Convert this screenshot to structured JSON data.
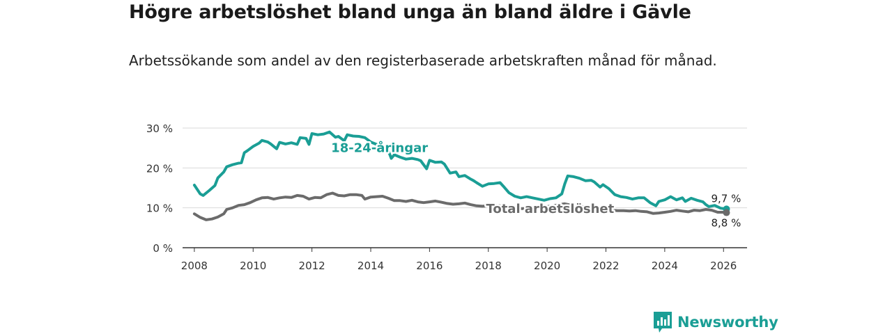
{
  "title": "Högre arbetslöshet bland unga än bland äldre i Gävle",
  "subtitle": "Arbetssökande som andel av den registerbaserade arbetskraften månad för månad.",
  "brand": {
    "name": "Newsworthy",
    "logo_icon": "bar-chart-logo-icon"
  },
  "colors": {
    "youth": "#1a9e95",
    "total": "#6b6b6b",
    "grid": "#d9d9d9",
    "axis": "#333333"
  },
  "chart_data": {
    "type": "line",
    "x_unit": "year",
    "xlim": [
      2007.6,
      2026.8
    ],
    "ylim": [
      0,
      30
    ],
    "x_ticks": [
      2008,
      2010,
      2012,
      2014,
      2016,
      2018,
      2020,
      2022,
      2024,
      2026
    ],
    "y_ticks": [
      {
        "value": 0,
        "label": "0 %"
      },
      {
        "value": 10,
        "label": "10 %"
      },
      {
        "value": 20,
        "label": "20 %"
      },
      {
        "value": 30,
        "label": "30 %"
      }
    ],
    "grid": true,
    "series": [
      {
        "name": "18-24-åringar",
        "label": "18-24-åringar",
        "label_anchor": [
          2014.3,
          25.2
        ],
        "end_label": "9,7 %",
        "points": [
          [
            2008.0,
            15.7
          ],
          [
            2008.2,
            13.5
          ],
          [
            2008.3,
            13.1
          ],
          [
            2008.5,
            14.3
          ],
          [
            2008.7,
            15.6
          ],
          [
            2008.8,
            17.5
          ],
          [
            2009.0,
            19.0
          ],
          [
            2009.1,
            20.3
          ],
          [
            2009.3,
            20.8
          ],
          [
            2009.5,
            21.2
          ],
          [
            2009.6,
            21.3
          ],
          [
            2009.7,
            23.8
          ],
          [
            2009.8,
            24.3
          ],
          [
            2010.0,
            25.4
          ],
          [
            2010.2,
            26.2
          ],
          [
            2010.3,
            26.9
          ],
          [
            2010.5,
            26.5
          ],
          [
            2010.6,
            26.0
          ],
          [
            2010.8,
            24.8
          ],
          [
            2010.9,
            26.4
          ],
          [
            2011.1,
            26.0
          ],
          [
            2011.3,
            26.3
          ],
          [
            2011.5,
            25.9
          ],
          [
            2011.6,
            27.6
          ],
          [
            2011.8,
            27.4
          ],
          [
            2011.9,
            25.9
          ],
          [
            2012.0,
            28.6
          ],
          [
            2012.2,
            28.3
          ],
          [
            2012.4,
            28.5
          ],
          [
            2012.6,
            29.0
          ],
          [
            2012.8,
            27.7
          ],
          [
            2012.9,
            27.9
          ],
          [
            2013.1,
            26.8
          ],
          [
            2013.2,
            28.3
          ],
          [
            2013.4,
            28.0
          ],
          [
            2013.6,
            27.9
          ],
          [
            2013.8,
            27.6
          ],
          [
            2014.0,
            26.5
          ],
          [
            2014.2,
            25.9
          ],
          [
            2014.4,
            25.5
          ],
          [
            2014.5,
            24.6
          ],
          [
            2014.6,
            24.3
          ],
          [
            2014.7,
            22.4
          ],
          [
            2014.8,
            23.3
          ],
          [
            2015.0,
            22.7
          ],
          [
            2015.2,
            22.2
          ],
          [
            2015.4,
            22.4
          ],
          [
            2015.6,
            22.1
          ],
          [
            2015.7,
            21.8
          ],
          [
            2015.9,
            19.8
          ],
          [
            2016.0,
            21.9
          ],
          [
            2016.2,
            21.4
          ],
          [
            2016.4,
            21.5
          ],
          [
            2016.5,
            21.0
          ],
          [
            2016.7,
            18.7
          ],
          [
            2016.9,
            19.0
          ],
          [
            2017.0,
            17.8
          ],
          [
            2017.2,
            18.1
          ],
          [
            2017.4,
            17.2
          ],
          [
            2017.5,
            16.8
          ],
          [
            2017.6,
            16.3
          ],
          [
            2017.8,
            15.4
          ],
          [
            2018.0,
            16.0
          ],
          [
            2018.2,
            16.1
          ],
          [
            2018.4,
            16.3
          ],
          [
            2018.5,
            15.5
          ],
          [
            2018.7,
            13.8
          ],
          [
            2018.9,
            12.9
          ],
          [
            2019.1,
            12.5
          ],
          [
            2019.3,
            12.8
          ],
          [
            2019.5,
            12.5
          ],
          [
            2019.7,
            12.2
          ],
          [
            2019.9,
            11.9
          ],
          [
            2020.1,
            12.3
          ],
          [
            2020.3,
            12.5
          ],
          [
            2020.5,
            13.5
          ],
          [
            2020.6,
            16.0
          ],
          [
            2020.7,
            18.0
          ],
          [
            2020.9,
            17.8
          ],
          [
            2021.1,
            17.4
          ],
          [
            2021.3,
            16.8
          ],
          [
            2021.5,
            16.9
          ],
          [
            2021.6,
            16.5
          ],
          [
            2021.8,
            15.2
          ],
          [
            2021.9,
            15.8
          ],
          [
            2022.1,
            14.8
          ],
          [
            2022.3,
            13.3
          ],
          [
            2022.5,
            12.8
          ],
          [
            2022.7,
            12.6
          ],
          [
            2022.9,
            12.2
          ],
          [
            2023.1,
            12.5
          ],
          [
            2023.3,
            12.5
          ],
          [
            2023.5,
            11.3
          ],
          [
            2023.7,
            10.5
          ],
          [
            2023.8,
            11.6
          ],
          [
            2024.0,
            12.0
          ],
          [
            2024.2,
            12.8
          ],
          [
            2024.4,
            12.0
          ],
          [
            2024.6,
            12.5
          ],
          [
            2024.7,
            11.6
          ],
          [
            2024.9,
            12.4
          ],
          [
            2025.1,
            11.9
          ],
          [
            2025.3,
            11.5
          ],
          [
            2025.4,
            10.8
          ],
          [
            2025.5,
            10.3
          ],
          [
            2025.7,
            10.6
          ],
          [
            2025.9,
            9.9
          ],
          [
            2026.1,
            9.7
          ]
        ]
      },
      {
        "name": "Total arbetslöshet",
        "label": "Total arbetslöshet",
        "label_anchor": [
          2020.1,
          9.9
        ],
        "end_label": "8,8 %",
        "points": [
          [
            2008.0,
            8.5
          ],
          [
            2008.2,
            7.6
          ],
          [
            2008.4,
            7.0
          ],
          [
            2008.6,
            7.2
          ],
          [
            2008.8,
            7.7
          ],
          [
            2009.0,
            8.5
          ],
          [
            2009.1,
            9.6
          ],
          [
            2009.3,
            10.0
          ],
          [
            2009.5,
            10.6
          ],
          [
            2009.7,
            10.8
          ],
          [
            2009.9,
            11.3
          ],
          [
            2010.1,
            12.0
          ],
          [
            2010.3,
            12.5
          ],
          [
            2010.5,
            12.6
          ],
          [
            2010.7,
            12.2
          ],
          [
            2010.9,
            12.5
          ],
          [
            2011.1,
            12.7
          ],
          [
            2011.3,
            12.6
          ],
          [
            2011.5,
            13.1
          ],
          [
            2011.7,
            12.9
          ],
          [
            2011.9,
            12.2
          ],
          [
            2012.1,
            12.6
          ],
          [
            2012.3,
            12.5
          ],
          [
            2012.5,
            13.3
          ],
          [
            2012.7,
            13.7
          ],
          [
            2012.9,
            13.1
          ],
          [
            2013.1,
            13.0
          ],
          [
            2013.3,
            13.3
          ],
          [
            2013.5,
            13.3
          ],
          [
            2013.7,
            13.1
          ],
          [
            2013.8,
            12.2
          ],
          [
            2014.0,
            12.7
          ],
          [
            2014.2,
            12.8
          ],
          [
            2014.4,
            12.9
          ],
          [
            2014.6,
            12.4
          ],
          [
            2014.8,
            11.8
          ],
          [
            2015.0,
            11.8
          ],
          [
            2015.2,
            11.6
          ],
          [
            2015.4,
            11.9
          ],
          [
            2015.6,
            11.5
          ],
          [
            2015.8,
            11.3
          ],
          [
            2016.0,
            11.5
          ],
          [
            2016.2,
            11.7
          ],
          [
            2016.4,
            11.4
          ],
          [
            2016.6,
            11.1
          ],
          [
            2016.8,
            10.9
          ],
          [
            2017.0,
            11.0
          ],
          [
            2017.2,
            11.2
          ],
          [
            2017.4,
            10.8
          ],
          [
            2017.6,
            10.5
          ],
          [
            2017.8,
            10.4
          ],
          [
            2018.0,
            10.5
          ],
          [
            2018.2,
            10.6
          ],
          [
            2018.4,
            10.5
          ],
          [
            2018.6,
            10.3
          ],
          [
            2018.8,
            10.0
          ],
          [
            2019.0,
            9.8
          ],
          [
            2019.2,
            9.8
          ],
          [
            2019.4,
            9.9
          ],
          [
            2019.6,
            10.0
          ],
          [
            2019.8,
            10.1
          ],
          [
            2020.0,
            10.3
          ],
          [
            2020.2,
            10.5
          ],
          [
            2020.4,
            10.8
          ],
          [
            2020.6,
            11.0
          ],
          [
            2020.8,
            10.7
          ],
          [
            2021.0,
            10.5
          ],
          [
            2021.2,
            10.3
          ],
          [
            2021.4,
            10.1
          ],
          [
            2021.6,
            10.0
          ],
          [
            2021.8,
            9.8
          ],
          [
            2022.0,
            9.6
          ],
          [
            2022.2,
            9.4
          ],
          [
            2022.4,
            9.3
          ],
          [
            2022.6,
            9.3
          ],
          [
            2022.8,
            9.2
          ],
          [
            2023.0,
            9.3
          ],
          [
            2023.2,
            9.1
          ],
          [
            2023.4,
            9.0
          ],
          [
            2023.6,
            8.6
          ],
          [
            2023.8,
            8.7
          ],
          [
            2024.0,
            8.9
          ],
          [
            2024.2,
            9.1
          ],
          [
            2024.4,
            9.4
          ],
          [
            2024.6,
            9.2
          ],
          [
            2024.8,
            9.0
          ],
          [
            2025.0,
            9.4
          ],
          [
            2025.2,
            9.3
          ],
          [
            2025.4,
            9.6
          ],
          [
            2025.6,
            9.4
          ],
          [
            2025.8,
            8.9
          ],
          [
            2026.0,
            8.9
          ],
          [
            2026.1,
            8.8
          ]
        ]
      }
    ]
  }
}
